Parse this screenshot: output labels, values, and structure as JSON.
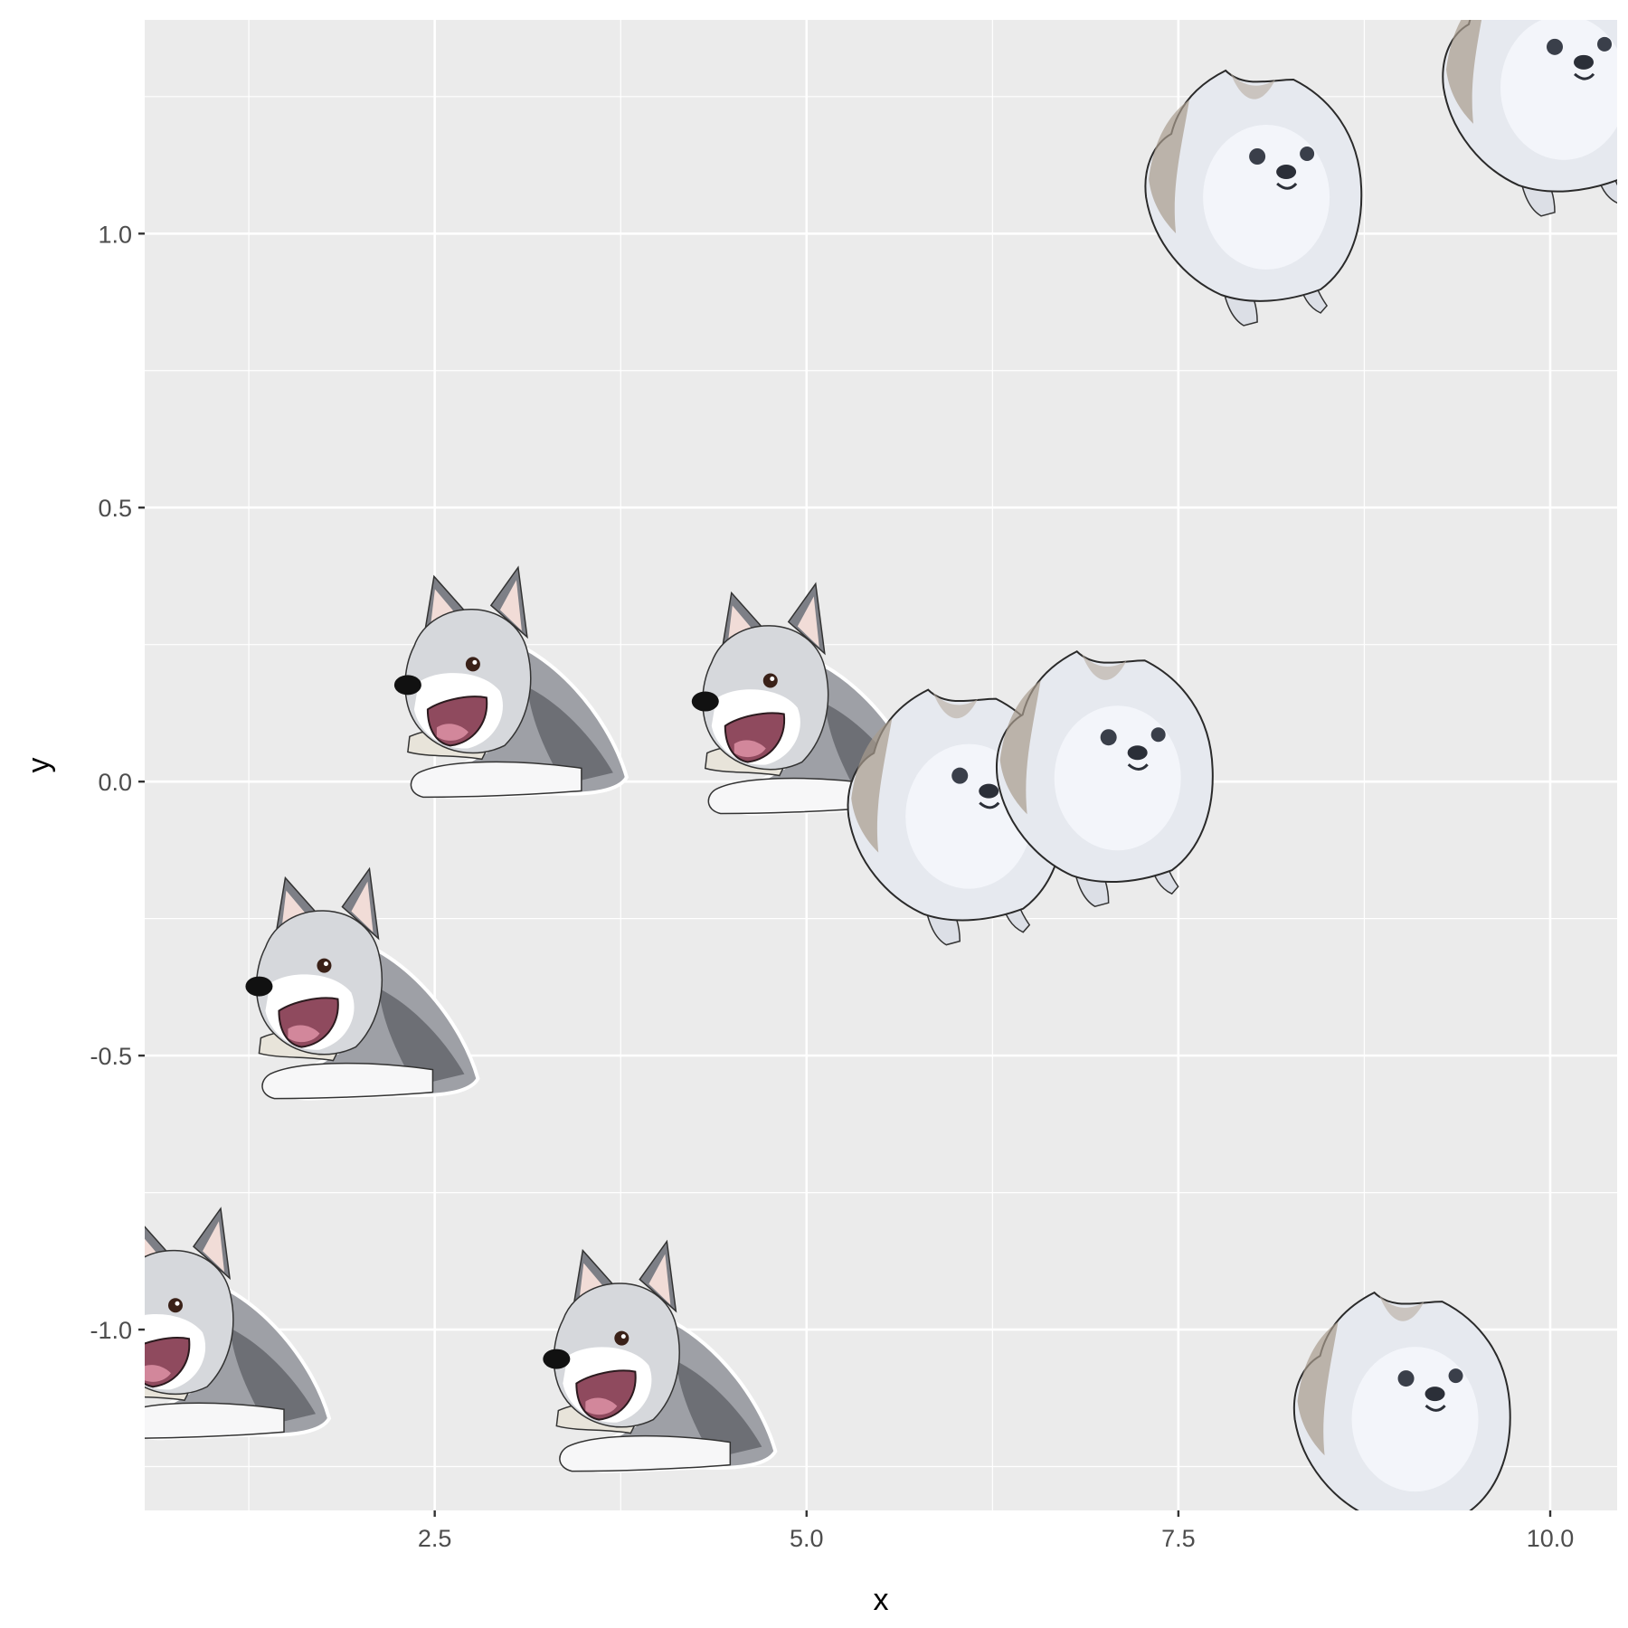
{
  "chart_data": {
    "type": "scatter",
    "title": "",
    "xlabel": "x",
    "ylabel": "y",
    "xlim": [
      0.55,
      10.45
    ],
    "ylim": [
      -1.33,
      1.39
    ],
    "x_ticks": [
      2.5,
      5.0,
      7.5,
      10.0
    ],
    "x_tick_labels": [
      "2.5",
      "5.0",
      "7.5",
      "10.0"
    ],
    "y_ticks": [
      -1.0,
      -0.5,
      0.0,
      0.5,
      1.0
    ],
    "y_tick_labels": [
      "-1.0",
      "-0.5",
      "0.0",
      "0.5",
      "1.0"
    ],
    "grid": true,
    "legend": "none",
    "background_color": "#EBEBEB",
    "grid_color": "#FFFFFF",
    "series": [
      {
        "marker": "husky-dog-image",
        "points": [
          {
            "x": 1,
            "y": -1.03
          },
          {
            "x": 2,
            "y": -0.41
          },
          {
            "x": 3,
            "y": 0.14
          },
          {
            "x": 4,
            "y": -1.09
          },
          {
            "x": 5,
            "y": 0.11
          }
        ]
      },
      {
        "marker": "pomeranian-dog-image",
        "points": [
          {
            "x": 6,
            "y": -0.08
          },
          {
            "x": 7,
            "y": -0.01
          },
          {
            "x": 8,
            "y": 1.05
          },
          {
            "x": 9,
            "y": -1.18
          },
          {
            "x": 10,
            "y": 1.25
          }
        ]
      }
    ]
  }
}
